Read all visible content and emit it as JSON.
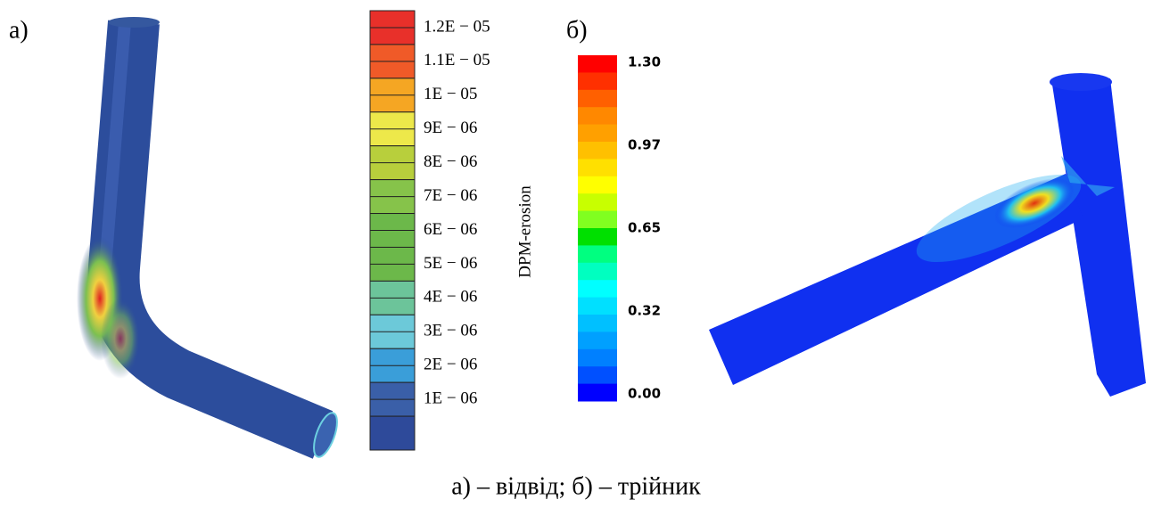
{
  "figure": {
    "panels": [
      {
        "label": "а)",
        "colorbar": {
          "title": "DPM-erosion",
          "ticks": [
            "1.2E − 05",
            "1.1E − 05",
            "1E − 05",
            "9E − 06",
            "8E − 06",
            "7E − 06",
            "6E − 06",
            "5E − 06",
            "4E − 06",
            "3E − 06",
            "2E − 06",
            "1E − 06"
          ]
        }
      },
      {
        "label": "б)",
        "colorbar": {
          "ticks": [
            "1.30",
            "0.97",
            "0.65",
            "0.32",
            "0.00"
          ]
        }
      }
    ],
    "caption": "а) – відвід; б) – трійник"
  }
}
